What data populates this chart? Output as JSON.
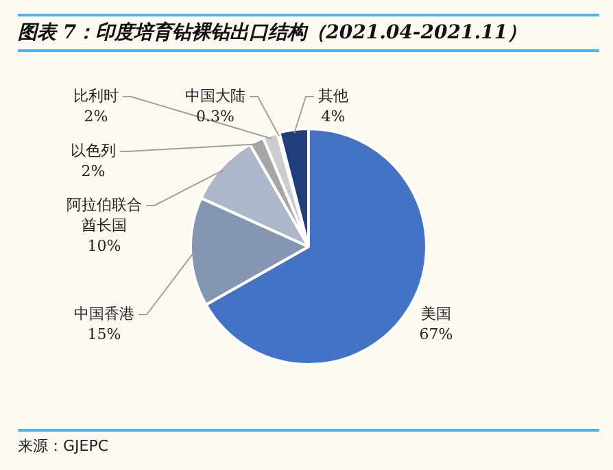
{
  "chart_data": {
    "type": "pie",
    "title": "图表 7：印度培育钻裸钻出口结构（2021.04-2021.11）",
    "categories": [
      "美国",
      "中国香港",
      "阿拉伯联合酋长国",
      "以色列",
      "比利时",
      "中国大陆",
      "其他"
    ],
    "values": [
      67,
      15,
      10,
      2,
      2,
      0.3,
      4
    ],
    "value_labels": [
      "67%",
      "15%",
      "10%",
      "2%",
      "2%",
      "0.3%",
      "4%"
    ],
    "colors": [
      "#4472c4",
      "#8496b0",
      "#acb8ca",
      "#a6a6a6",
      "#cccccc",
      "#e2e2e2",
      "#203f7a"
    ],
    "annotations": [
      "来源：GJEPC"
    ]
  }
}
